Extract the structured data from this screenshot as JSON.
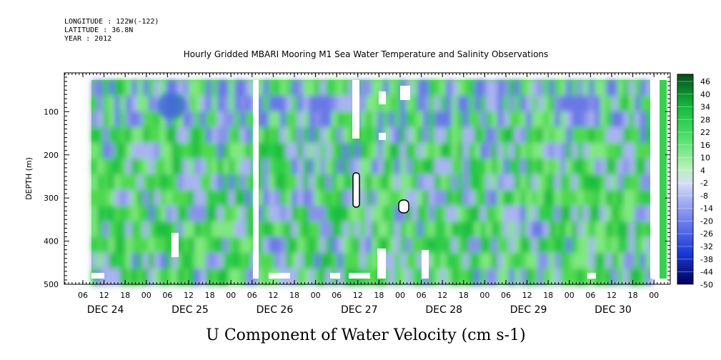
{
  "header": {
    "longitude": "LONGITUDE : 122W(-122)",
    "latitude": "LATITUDE : 36.8N",
    "year": "YEAR : 2012"
  },
  "chart_data": {
    "type": "heatmap",
    "title": "Hourly Gridded MBARI Mooring M1 Sea Water Temperature and Salinity Observations",
    "xlabel": "U Component of Water Velocity (cm s-1)",
    "ylabel": "DEPTH (m)",
    "ylim": [
      500,
      10
    ],
    "y_ticks": [
      100,
      200,
      300,
      400,
      500
    ],
    "x_hour_ticks": [
      "06",
      "12",
      "18",
      "00",
      "06",
      "12",
      "18",
      "00",
      "06",
      "12",
      "18",
      "00",
      "06",
      "12",
      "18",
      "00",
      "06",
      "12",
      "18",
      "00",
      "06",
      "12",
      "18",
      "00",
      "06",
      "12",
      "18",
      "00"
    ],
    "x_day_labels": [
      "DEC 24",
      "DEC 25",
      "DEC 26",
      "DEC 27",
      "DEC 28",
      "DEC 29",
      "DEC 30"
    ],
    "colorbar": {
      "labels": [
        "46",
        "40",
        "34",
        "28",
        "22",
        "16",
        "10",
        "4",
        "-2",
        "-8",
        "-14",
        "-20",
        "-26",
        "-32",
        "-38",
        "-44",
        "-50"
      ],
      "min": -50,
      "max": 50
    },
    "data_gaps": [
      "Dec 25 ~18-20h",
      "Dec 30 ~23h"
    ]
  }
}
